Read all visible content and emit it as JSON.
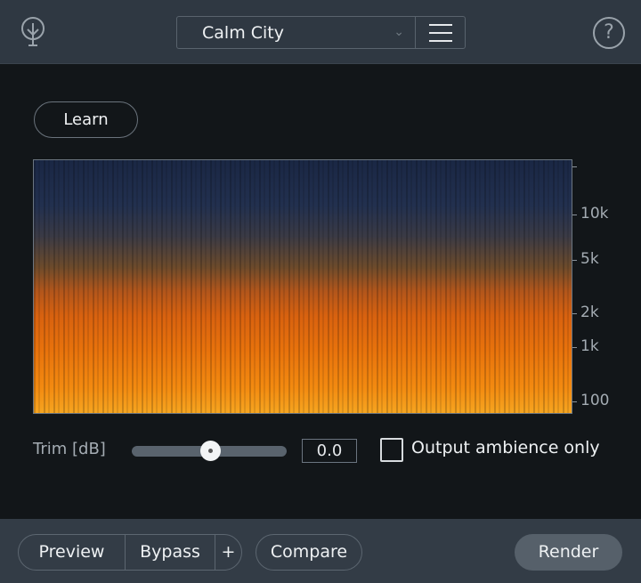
{
  "header": {
    "preset_name": "Calm City",
    "icons": {
      "logo": "tree-icon",
      "dropdown": "chevron-down-icon",
      "menu": "hamburger-icon",
      "help": "question-icon"
    }
  },
  "main": {
    "learn_label": "Learn",
    "spectrogram": {
      "freq_labels": [
        "10k",
        "5k",
        "2k",
        "1k",
        "100"
      ],
      "colors": {
        "low": "#f6a520",
        "mid": "#d9620f",
        "high": "#1a2744"
      }
    },
    "trim": {
      "label": "Trim [dB]",
      "value": "0.0",
      "slider_fraction": 0.5
    },
    "output_ambience": {
      "label": "Output ambience only",
      "checked": false
    }
  },
  "footer": {
    "preview": "Preview",
    "bypass": "Bypass",
    "plus": "+",
    "compare": "Compare",
    "render": "Render"
  }
}
